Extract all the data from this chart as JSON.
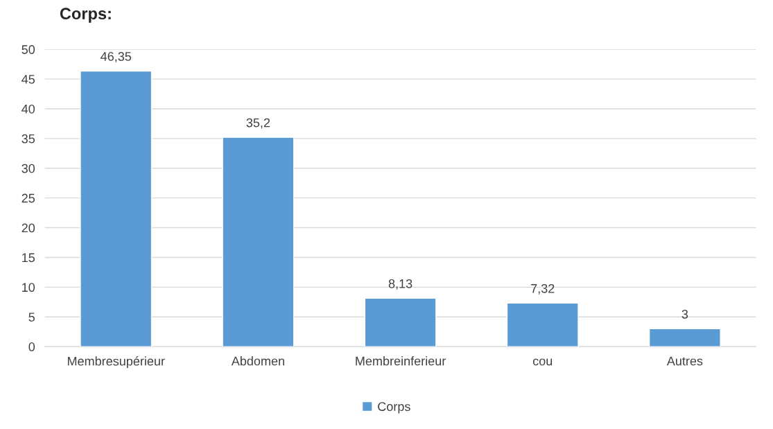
{
  "chart_data": {
    "type": "bar",
    "title": "Corps:",
    "categories": [
      "Membresupérieur",
      "Abdomen",
      "Membreinferieur",
      "cou",
      "Autres"
    ],
    "series": [
      {
        "name": "Corps",
        "color": "#5b9bd5",
        "values": [
          46.35,
          35.2,
          8.13,
          7.32,
          3
        ],
        "value_labels": [
          "46,35",
          "35,2",
          "8,13",
          "7,32",
          "3"
        ]
      }
    ],
    "ylim": [
      0,
      50
    ],
    "yticks": [
      0,
      5,
      10,
      15,
      20,
      25,
      30,
      35,
      40,
      45,
      50
    ],
    "grid": "y",
    "legend": "bottom"
  }
}
